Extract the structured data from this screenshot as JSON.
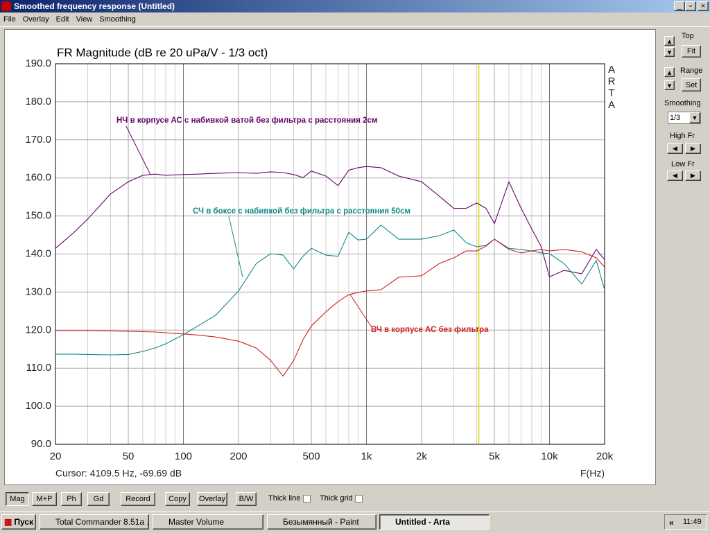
{
  "window": {
    "title": "Smoothed frequency response (Untitled)"
  },
  "menu": [
    "File",
    "Overlay",
    "Edit",
    "View",
    "Smoothing"
  ],
  "side_panel": {
    "top": "Top",
    "fit": "Fit",
    "range": "Range",
    "set": "Set",
    "smoothing": "Smoothing",
    "smoothing_value": "1/3",
    "high_fr": "High Fr",
    "low_fr": "Low Fr"
  },
  "toolbar": {
    "buttons": [
      "Mag",
      "M+P",
      "Ph",
      "Gd",
      "Record",
      "Copy",
      "Overlay",
      "B/W"
    ],
    "checkboxes": [
      "Thick line",
      "Thick grid"
    ]
  },
  "taskbar": {
    "start": "Пуск",
    "items": [
      "Total Commander 8.51a ...",
      "Master Volume",
      "Безымянный - Paint",
      "Untitled - Arta"
    ],
    "clock": "11:49"
  },
  "chart_data": {
    "type": "line",
    "title": "FR Magnitude (dB re 20 uPa/V - 1/3 oct)",
    "watermark": "ARTA",
    "x_label": "F(Hz)",
    "log_x": true,
    "grid": true,
    "cursor": {
      "x": 4109.5,
      "label": "Cursor: 4109.5 Hz, -69.69 dB",
      "color": "#d8d800"
    },
    "xlim": [
      20,
      20000
    ],
    "xticks": [
      20,
      50,
      100,
      200,
      500,
      {
        "value": 1000,
        "label": "1k"
      },
      {
        "value": 2000,
        "label": "2k"
      },
      {
        "value": 5000,
        "label": "5k"
      },
      {
        "value": 10000,
        "label": "10k"
      },
      {
        "value": 20000,
        "label": "20k"
      }
    ],
    "xminor": [
      30,
      40,
      60,
      70,
      80,
      90,
      300,
      400,
      600,
      700,
      800,
      900,
      3000,
      4000,
      6000,
      7000,
      8000,
      9000
    ],
    "ylim": [
      90,
      190
    ],
    "yticks": [
      {
        "value": 90,
        "label": "90.0"
      },
      {
        "value": 100,
        "label": "100.0"
      },
      {
        "value": 110,
        "label": "110.0"
      },
      {
        "value": 120,
        "label": "120.0"
      },
      {
        "value": 130,
        "label": "130.0"
      },
      {
        "value": 140,
        "label": "140.0"
      },
      {
        "value": 150,
        "label": "150.0"
      },
      {
        "value": 160,
        "label": "160.0"
      },
      {
        "value": 170,
        "label": "170.0"
      },
      {
        "value": 180,
        "label": "180.0"
      },
      {
        "value": 190,
        "label": "190.0"
      }
    ],
    "x": [
      20,
      25,
      30,
      40,
      50,
      60,
      70,
      80,
      100,
      120,
      150,
      200,
      250,
      300,
      350,
      400,
      450,
      500,
      600,
      700,
      800,
      900,
      1000,
      1200,
      1500,
      2000,
      2500,
      3000,
      3500,
      4000,
      4500,
      5000,
      6000,
      7000,
      8000,
      9000,
      10000,
      12000,
      15000,
      18000,
      20000
    ],
    "series": [
      {
        "name": "НЧ в корпусе АС с набивкой ватой без фильтра с расстояния 2см",
        "color": "#660066",
        "values": [
          141.5,
          145.5,
          149.2,
          155.8,
          159,
          160.7,
          161,
          160.7,
          160.9,
          161,
          161.2,
          161.4,
          161.2,
          161.6,
          161.4,
          160.9,
          160.1,
          161.8,
          160.5,
          158,
          162,
          162.7,
          163,
          162.7,
          160.5,
          159,
          155.2,
          152,
          152,
          153.4,
          152,
          148,
          159,
          152,
          146.6,
          142,
          134,
          135.7,
          134.8,
          141.2,
          138.5
        ]
      },
      {
        "name": "СЧ в боксе с набивкой без фильтра с расстояния 50см",
        "color": "#108888",
        "values": [
          113.7,
          113.7,
          113.6,
          113.5,
          113.6,
          114.4,
          115.3,
          116.4,
          118.8,
          121.1,
          123.9,
          130.3,
          137.5,
          140.1,
          139.7,
          136.1,
          139.4,
          141.5,
          139.7,
          139.4,
          145.7,
          143.7,
          143.9,
          147.6,
          143.9,
          143.9,
          144.8,
          146.3,
          143,
          141.9,
          142.3,
          143.9,
          141.5,
          141.2,
          140.8,
          140.3,
          140.1,
          137.5,
          132.1,
          138.3,
          130.6
        ]
      },
      {
        "name": "ВЧ в корпусе АС без фильтра",
        "color": "#d02020",
        "values": [
          119.9,
          119.9,
          119.9,
          119.8,
          119.7,
          119.6,
          119.5,
          119.3,
          119,
          118.7,
          118.2,
          117.1,
          115.3,
          112,
          107.9,
          112,
          117.5,
          121.1,
          124.8,
          127.5,
          129.3,
          129.9,
          130.3,
          130.6,
          133.9,
          134.3,
          137.5,
          139,
          140.8,
          140.8,
          142.1,
          143.9,
          141.2,
          140.3,
          140.8,
          141.2,
          140.8,
          141.2,
          140.6,
          139,
          136.6
        ]
      }
    ]
  }
}
